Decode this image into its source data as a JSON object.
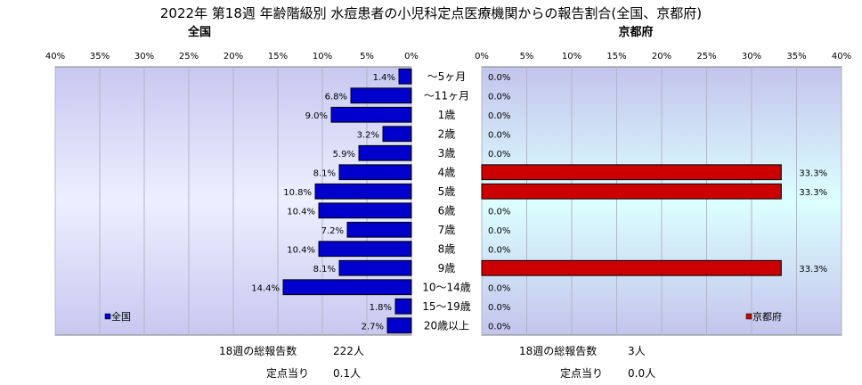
{
  "chart_data": {
    "type": "bar",
    "orientation": "horizontal",
    "title": "2022年 第18週 年齢階級別 水痘患者の小児科定点医療機関からの報告割合(全国、京都府)",
    "categories": [
      "～5ヶ月",
      "～11ヶ月",
      "1歳",
      "2歳",
      "3歳",
      "4歳",
      "5歳",
      "6歳",
      "7歳",
      "8歳",
      "9歳",
      "10～14歳",
      "15～19歳",
      "20歳以上"
    ],
    "tick_labels": [
      "0%",
      "5%",
      "10%",
      "15%",
      "20%",
      "25%",
      "30%",
      "35%",
      "40%"
    ],
    "xlim": [
      0,
      40
    ],
    "grid": true,
    "panels": [
      {
        "subtitle": "全国",
        "legend": "全国",
        "direction": "leftward",
        "color": "#0000cc",
        "background": "lavender-gradient",
        "values": [
          1.4,
          6.8,
          9.0,
          3.2,
          5.9,
          8.1,
          10.8,
          10.4,
          7.2,
          10.4,
          8.1,
          14.4,
          1.8,
          2.7
        ],
        "value_labels": [
          "1.4%",
          "6.8%",
          "9.0%",
          "3.2%",
          "5.9%",
          "8.1%",
          "10.8%",
          "10.4%",
          "7.2%",
          "10.4%",
          "8.1%",
          "14.4%",
          "1.8%",
          "2.7%"
        ],
        "total_label": "18週の総報告数",
        "total_value": "222人",
        "per_label": "定点当り",
        "per_value": "0.1人"
      },
      {
        "subtitle": "京都府",
        "legend": "京都府",
        "direction": "rightward",
        "color": "#cc0000",
        "background": "cyan-gradient",
        "values": [
          0.0,
          0.0,
          0.0,
          0.0,
          0.0,
          33.3,
          33.3,
          0.0,
          0.0,
          0.0,
          33.3,
          0.0,
          0.0,
          0.0
        ],
        "value_labels": [
          "0.0%",
          "0.0%",
          "0.0%",
          "0.0%",
          "0.0%",
          "33.3%",
          "33.3%",
          "0.0%",
          "0.0%",
          "0.0%",
          "33.3%",
          "0.0%",
          "0.0%",
          "0.0%"
        ],
        "total_label": "18週の総報告数",
        "total_value": "3人",
        "per_label": "定点当り",
        "per_value": "0.0人"
      }
    ]
  }
}
